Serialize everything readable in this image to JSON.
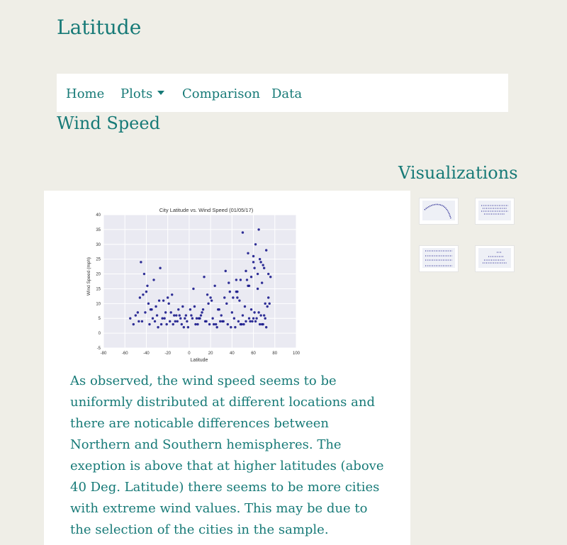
{
  "site": {
    "title": "Latitude"
  },
  "nav": {
    "items": [
      {
        "label": "Home"
      },
      {
        "label": "Plots"
      },
      {
        "label": "Comparison"
      },
      {
        "label": "Data"
      }
    ]
  },
  "page": {
    "heading": "Wind Speed"
  },
  "visualizations": {
    "heading": "Visualizations"
  },
  "description": "As observed, the wind speed seems to be uniformly distributed at different locations and there are noticable differences between Northern and Southern hemispheres. The exeption is above that at higher latitudes (above 40 Deg. Latitude) there seems to be more cities with extreme wind values. This may be due to the selection of the cities in the sample.",
  "colors": {
    "accent": "#177a77",
    "background": "#efeee7",
    "point": "#1a1a8c",
    "plot_bg": "#eaeaf2"
  },
  "icons": {
    "plots_dropdown": "caret-down-icon"
  },
  "chart_data": {
    "type": "scatter",
    "title": "City Latitude vs. Wind Speed (01/05/17)",
    "xlabel": "Latitude",
    "ylabel": "Wind Speed (mph)",
    "xlim": [
      -80,
      100
    ],
    "ylim": [
      -5,
      40
    ],
    "xticks": [
      -80,
      -60,
      -40,
      -20,
      0,
      20,
      40,
      60,
      80,
      100
    ],
    "yticks": [
      -5,
      0,
      5,
      10,
      15,
      20,
      25,
      30,
      35,
      40
    ],
    "grid": true,
    "x": [
      -42,
      -40,
      -38,
      -35,
      -30,
      -28,
      -25,
      -22,
      -20,
      -18,
      -15,
      -12,
      -10,
      -8,
      -5,
      -2,
      2,
      5,
      8,
      10,
      12,
      15,
      18,
      20,
      22,
      25,
      28,
      30,
      32,
      35,
      38,
      40,
      42,
      45,
      48,
      50,
      52,
      55,
      58,
      60,
      62,
      65,
      68,
      70,
      72,
      75,
      -45,
      -33,
      -27,
      -16,
      -6,
      4,
      14,
      24,
      34,
      44,
      54,
      64,
      74,
      -36,
      -24,
      -14,
      -4,
      6,
      16,
      26,
      36,
      46,
      56,
      66,
      -41,
      -31,
      -21,
      -11,
      -1,
      9,
      19,
      29,
      39,
      49,
      59,
      69,
      -39,
      -19,
      1,
      21,
      41,
      61,
      71,
      -50,
      -48,
      -44,
      -37,
      -29,
      -23,
      -13,
      -7,
      3,
      11,
      23,
      31,
      43,
      51,
      57,
      63,
      67,
      73,
      -43,
      -9,
      7,
      27,
      47,
      53,
      65,
      50,
      72,
      62,
      55,
      66,
      70,
      74,
      60,
      48,
      58,
      68,
      64,
      56,
      -47,
      -34,
      -26,
      -3,
      13,
      33,
      45,
      61,
      69,
      76,
      -55,
      -52,
      -46,
      -32,
      -17,
      17,
      37,
      44,
      53,
      60,
      67,
      71
    ],
    "y": [
      20,
      14,
      10,
      8,
      6,
      11,
      5,
      7,
      12,
      4,
      3,
      6,
      8,
      5,
      2,
      4,
      6,
      9,
      3,
      5,
      7,
      4,
      10,
      12,
      5,
      3,
      8,
      6,
      4,
      10,
      14,
      7,
      5,
      12,
      3,
      6,
      9,
      16,
      8,
      5,
      4,
      7,
      3,
      6,
      2,
      10,
      24,
      18,
      22,
      13,
      9,
      15,
      19,
      16,
      21,
      14,
      18,
      20,
      12,
      8,
      11,
      6,
      5,
      3,
      4,
      2,
      3,
      4,
      5,
      3,
      7,
      9,
      3,
      4,
      2,
      5,
      3,
      4,
      2,
      3,
      4,
      3,
      16,
      10,
      8,
      11,
      12,
      7,
      5,
      6,
      7,
      4,
      3,
      2,
      5,
      4,
      3,
      5,
      6,
      3,
      4,
      2,
      3,
      4,
      5,
      6,
      9,
      13,
      6,
      5,
      8,
      11,
      4,
      35,
      34,
      28,
      30,
      27,
      25,
      22,
      20,
      24,
      18,
      19,
      17,
      15,
      16,
      4,
      5,
      3,
      6,
      8,
      12,
      14,
      22,
      23,
      19,
      5,
      3,
      12,
      4,
      7,
      13,
      17,
      18,
      21,
      26,
      24,
      10
    ]
  }
}
